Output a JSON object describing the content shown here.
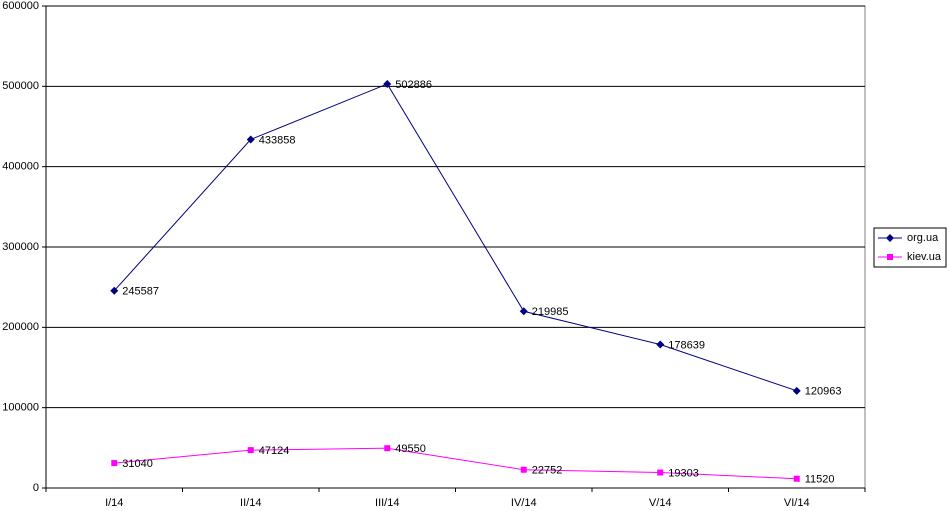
{
  "chart_data": {
    "type": "line",
    "categories": [
      "I/14",
      "II/14",
      "III/14",
      "IV/14",
      "V/14",
      "VI/14"
    ],
    "series": [
      {
        "name": "org.ua",
        "color": "#000080",
        "marker": "diamond",
        "values": [
          245587,
          433858,
          502886,
          219985,
          178639,
          120963
        ]
      },
      {
        "name": "kiev.ua",
        "color": "#ff00ff",
        "marker": "square",
        "values": [
          31040,
          47124,
          49550,
          22752,
          19303,
          11520
        ]
      }
    ],
    "ylim": [
      0,
      600000
    ],
    "yticks": [
      0,
      100000,
      200000,
      300000,
      400000,
      500000,
      600000
    ],
    "grid": true,
    "legend": "right"
  }
}
